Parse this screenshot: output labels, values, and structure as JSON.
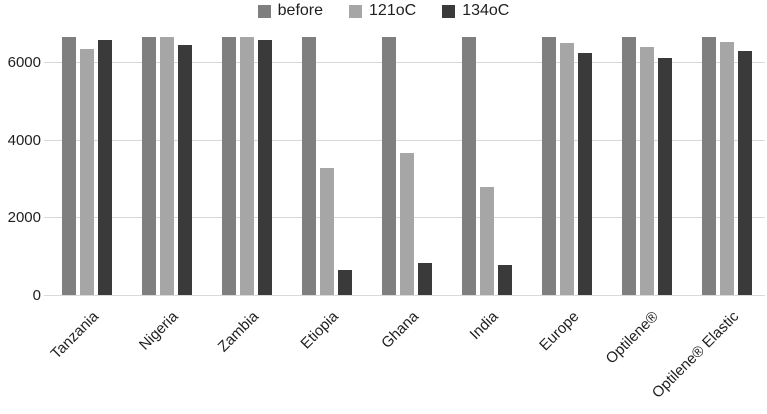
{
  "chart_data": {
    "type": "bar",
    "title": "",
    "xlabel": "",
    "ylabel": "",
    "categories": [
      "Tanzania",
      "Nigeria",
      "Zambia",
      "Etiopia",
      "Ghana",
      "India",
      "Europe",
      "Optilene®",
      "Optilene® Elastic"
    ],
    "series": [
      {
        "name": "before",
        "color": "#7f7f7f",
        "values": [
          6640,
          6640,
          6640,
          6640,
          6640,
          6640,
          6640,
          6640,
          6640
        ]
      },
      {
        "name": "121oC",
        "color": "#a6a6a6",
        "values": [
          6330,
          6640,
          6640,
          3280,
          3660,
          2790,
          6490,
          6390,
          6500
        ]
      },
      {
        "name": "134oC",
        "color": "#3a3a3a",
        "values": [
          6560,
          6440,
          6570,
          640,
          830,
          780,
          6220,
          6110,
          6270
        ]
      }
    ],
    "ylim": [
      0,
      7000
    ],
    "yticks": [
      0,
      2000,
      4000,
      6000
    ],
    "grid": true,
    "legend_position": "top-center",
    "gridline_color": "#d9d9d9",
    "text_color": "#1f1f1f",
    "background": "#ffffff"
  }
}
